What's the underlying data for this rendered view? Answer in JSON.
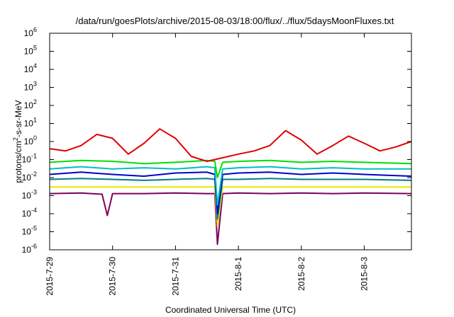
{
  "chart_data": {
    "type": "line",
    "title": "/data/run/goesPlots/archive/2015-08-03/18:00/flux/../flux/5daysMoonFluxes.txt",
    "xlabel": "Coordinated Universal Time (UTC)",
    "ylabel_prefix": "protons/cm",
    "ylabel_sup": "2",
    "ylabel_suffix": "-s-sr-MeV",
    "y_scale": "log",
    "ylim": [
      1e-06,
      1000000.0
    ],
    "xlim": [
      "2015-07-29 00:00",
      "2015-08-03 18:00"
    ],
    "grid": false,
    "legend": "none",
    "x_ticks": [
      "2015-7-29",
      "2015-7-30",
      "2015-7-31",
      "2015-8-1",
      "2015-8-2",
      "2015-8-3"
    ],
    "y_ticks": [
      {
        "base": "10",
        "exp": "-6"
      },
      {
        "base": "10",
        "exp": "-5"
      },
      {
        "base": "10",
        "exp": "-4"
      },
      {
        "base": "10",
        "exp": "-3"
      },
      {
        "base": "10",
        "exp": "-2"
      },
      {
        "base": "10",
        "exp": "-1"
      },
      {
        "base": "10",
        "exp": "0"
      },
      {
        "base": "10",
        "exp": "1"
      },
      {
        "base": "10",
        "exp": "2"
      },
      {
        "base": "10",
        "exp": "3"
      },
      {
        "base": "10",
        "exp": "4"
      },
      {
        "base": "10",
        "exp": "5"
      },
      {
        "base": "10",
        "exp": "6"
      }
    ],
    "series": [
      {
        "color": "#e00000",
        "x": [
          "2015-07-29 00:00",
          "2015-07-29 06:00",
          "2015-07-29 12:00",
          "2015-07-29 18:00",
          "2015-07-30 00:00",
          "2015-07-30 06:00",
          "2015-07-30 12:00",
          "2015-07-30 18:00",
          "2015-07-31 00:00",
          "2015-07-31 06:00",
          "2015-07-31 12:00",
          "2015-07-31 15:00",
          "2015-08-01 00:00",
          "2015-08-01 06:00",
          "2015-08-01 12:00",
          "2015-08-01 18:00",
          "2015-08-02 00:00",
          "2015-08-02 06:00",
          "2015-08-02 12:00",
          "2015-08-02 18:00",
          "2015-08-03 00:00",
          "2015-08-03 06:00",
          "2015-08-03 12:00",
          "2015-08-03 18:00"
        ],
        "y": [
          0.4,
          0.3,
          0.6,
          2.5,
          1.5,
          0.2,
          0.8,
          5,
          1.5,
          0.15,
          0.08,
          0.1,
          0.2,
          0.3,
          0.6,
          4,
          1.2,
          0.2,
          0.6,
          2,
          0.8,
          0.3,
          0.5,
          1.0
        ]
      },
      {
        "color": "#00e000",
        "x": [
          "2015-07-29 00:00",
          "2015-07-29 12:00",
          "2015-07-30 00:00",
          "2015-07-30 12:00",
          "2015-07-31 00:00",
          "2015-07-31 12:00",
          "2015-07-31 15:00",
          "2015-07-31 16:00",
          "2015-07-31 18:00",
          "2015-08-01 00:00",
          "2015-08-01 12:00",
          "2015-08-02 00:00",
          "2015-08-02 12:00",
          "2015-08-03 00:00",
          "2015-08-03 18:00"
        ],
        "y": [
          0.07,
          0.09,
          0.08,
          0.06,
          0.07,
          0.09,
          0.08,
          0.01,
          0.07,
          0.08,
          0.09,
          0.07,
          0.08,
          0.07,
          0.06
        ]
      },
      {
        "color": "#00c0c0",
        "x": [
          "2015-07-29 00:00",
          "2015-07-29 12:00",
          "2015-07-30 00:00",
          "2015-07-30 12:00",
          "2015-07-31 00:00",
          "2015-07-31 12:00",
          "2015-07-31 15:00",
          "2015-07-31 16:00",
          "2015-07-31 18:00",
          "2015-08-01 00:00",
          "2015-08-01 12:00",
          "2015-08-02 00:00",
          "2015-08-02 12:00",
          "2015-08-03 00:00",
          "2015-08-03 18:00"
        ],
        "y": [
          0.03,
          0.04,
          0.03,
          0.035,
          0.03,
          0.04,
          0.035,
          0.0003,
          0.03,
          0.035,
          0.04,
          0.03,
          0.035,
          0.03,
          0.03
        ]
      },
      {
        "color": "#0000d0",
        "x": [
          "2015-07-29 00:00",
          "2015-07-29 12:00",
          "2015-07-30 00:00",
          "2015-07-30 12:00",
          "2015-07-31 00:00",
          "2015-07-31 12:00",
          "2015-07-31 15:00",
          "2015-07-31 16:00",
          "2015-07-31 18:00",
          "2015-08-01 00:00",
          "2015-08-01 12:00",
          "2015-08-02 00:00",
          "2015-08-02 12:00",
          "2015-08-03 00:00",
          "2015-08-03 18:00"
        ],
        "y": [
          0.015,
          0.02,
          0.015,
          0.012,
          0.018,
          0.02,
          0.015,
          0.0001,
          0.015,
          0.018,
          0.02,
          0.015,
          0.018,
          0.015,
          0.012
        ]
      },
      {
        "color": "#008080",
        "x": [
          "2015-07-29 00:00",
          "2015-07-29 12:00",
          "2015-07-30 00:00",
          "2015-07-30 12:00",
          "2015-07-31 00:00",
          "2015-07-31 12:00",
          "2015-07-31 15:00",
          "2015-07-31 16:00",
          "2015-07-31 18:00",
          "2015-08-01 00:00",
          "2015-08-01 12:00",
          "2015-08-02 00:00",
          "2015-08-02 12:00",
          "2015-08-03 00:00",
          "2015-08-03 18:00"
        ],
        "y": [
          0.008,
          0.009,
          0.008,
          0.007,
          0.008,
          0.009,
          0.008,
          5e-05,
          0.008,
          0.008,
          0.009,
          0.008,
          0.008,
          0.008,
          0.007
        ]
      },
      {
        "color": "#e8e800",
        "x": [
          "2015-07-29 00:00",
          "2015-07-29 12:00",
          "2015-07-30 00:00",
          "2015-07-30 12:00",
          "2015-07-31 00:00",
          "2015-07-31 12:00",
          "2015-07-31 15:00",
          "2015-07-31 16:00",
          "2015-07-31 18:00",
          "2015-08-01 00:00",
          "2015-08-01 12:00",
          "2015-08-02 00:00",
          "2015-08-02 12:00",
          "2015-08-03 00:00",
          "2015-08-03 18:00"
        ],
        "y": [
          0.003,
          0.003,
          0.003,
          0.003,
          0.003,
          0.003,
          0.003,
          2e-05,
          0.003,
          0.003,
          0.003,
          0.003,
          0.003,
          0.003,
          0.003
        ]
      },
      {
        "color": "#800060",
        "x": [
          "2015-07-29 00:00",
          "2015-07-29 12:00",
          "2015-07-29 20:00",
          "2015-07-29 22:00",
          "2015-07-30 00:00",
          "2015-07-30 12:00",
          "2015-07-31 00:00",
          "2015-07-31 12:00",
          "2015-07-31 15:00",
          "2015-07-31 16:00",
          "2015-07-31 18:00",
          "2015-08-01 00:00",
          "2015-08-01 12:00",
          "2015-08-02 00:00",
          "2015-08-02 12:00",
          "2015-08-03 00:00",
          "2015-08-03 18:00"
        ],
        "y": [
          0.0013,
          0.0014,
          0.0012,
          8e-05,
          0.0013,
          0.0013,
          0.0014,
          0.0013,
          0.0013,
          2e-06,
          0.0013,
          0.0014,
          0.0013,
          0.0014,
          0.0013,
          0.0014,
          0.0013
        ]
      }
    ]
  }
}
